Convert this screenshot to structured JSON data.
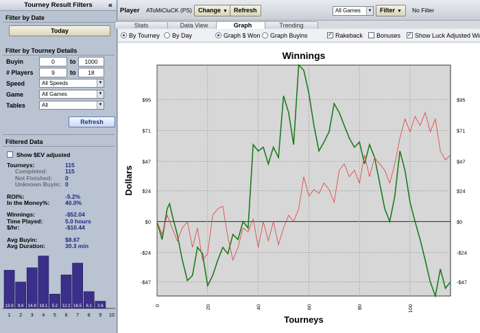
{
  "left_panel": {
    "title": "Tourney Result Filters",
    "collapse_glyph": "«",
    "date_section": {
      "title": "Filter by Date",
      "today_label": "Today"
    },
    "details_section": {
      "title": "Filter by Tourney Details",
      "buyin_label": "Buyin",
      "buyin_min": "0",
      "buyin_to": "to",
      "buyin_max": "1000",
      "players_label": "# Players",
      "players_min": "9",
      "players_to": "to",
      "players_max": "18",
      "speed_label": "Speed",
      "speed_value": "All Speeds",
      "game_label": "Game",
      "game_value": "All Games",
      "tables_label": "Tables",
      "tables_value": "All",
      "refresh_label": "Refresh"
    },
    "filtered": {
      "title": "Filtered Data",
      "show_ev_label": "Show $EV adjusted",
      "show_ev_checked": false,
      "stats": [
        {
          "label": "Tourneys:",
          "value": "115",
          "kind": "main"
        },
        {
          "label": "Completed:",
          "value": "115",
          "kind": "sub"
        },
        {
          "label": "Not Finished:",
          "value": "0",
          "kind": "sub"
        },
        {
          "label": "Unknown Buyin:",
          "value": "0",
          "kind": "sub"
        },
        {
          "label": "ROI%:",
          "value": "-5.2%",
          "kind": "main"
        },
        {
          "label": "In the Money%:",
          "value": "40.0%",
          "kind": "main"
        },
        {
          "label": "Winnings:",
          "value": "-$52.04",
          "kind": "main"
        },
        {
          "label": "Time Played:",
          "value": "5.0 hours",
          "kind": "main"
        },
        {
          "label": "$/hr:",
          "value": "-$10.44",
          "kind": "main"
        },
        {
          "label": "Avg Buyin:",
          "value": "$8.67",
          "kind": "main"
        },
        {
          "label": "Avg Duration:",
          "value": "30.3 min",
          "kind": "main"
        }
      ]
    },
    "histogram": {
      "bars": [
        13.9,
        9.6,
        14.8,
        19.1,
        5.2,
        12.2,
        16.5,
        6.1,
        2.6
      ],
      "bar_labels": [
        "13.9",
        "9.6",
        "14.8",
        "19.1",
        "5.2",
        "12.2",
        "16.5",
        "6.1",
        "2.6"
      ],
      "axis_labels": [
        "1",
        "2",
        "3",
        "4",
        "5",
        "6",
        "7",
        "8",
        "9",
        "10"
      ],
      "bar_color": "#3b2f8a"
    }
  },
  "toolbar": {
    "player_label": "Player",
    "player_name": "AToMiCluCK (PS)",
    "change_label": "Change",
    "refresh_label": "Refresh",
    "games_value": "All Games",
    "filter_label": "Filter",
    "filter_status": "No Filter"
  },
  "tabs": [
    {
      "label": "Stats",
      "active": false
    },
    {
      "label": "Data View",
      "active": false
    },
    {
      "label": "Graph",
      "active": true
    },
    {
      "label": "Trending",
      "active": false
    }
  ],
  "options": {
    "by_tourney": "By Tourney",
    "by_day": "By Day",
    "graph_won": "Graph $ Won",
    "graph_buyins": "Graph Buyins",
    "rakeback": "Rakeback",
    "bonuses": "Bonuses",
    "show_luck": "Show Luck Adjusted Winnings",
    "by_tourney_selected": true,
    "graph_won_selected": true,
    "rakeback_checked": true,
    "bonuses_checked": false,
    "show_luck_checked": true
  },
  "chart_data": {
    "type": "line",
    "title": "Winnings",
    "xlabel": "Tourneys",
    "ylabel": "Dollars",
    "xlim": [
      0,
      116
    ],
    "ylim": [
      -58,
      122
    ],
    "x_ticks": [
      0,
      20,
      40,
      60,
      80,
      100
    ],
    "y_ticks": [
      -47,
      -24,
      0,
      24,
      47,
      71,
      95
    ],
    "y_tick_labels": [
      "-$47",
      "-$24",
      "$0",
      "$24",
      "$47",
      "$71",
      "$95"
    ],
    "grid": true,
    "series": [
      {
        "color": "#1a7a1a",
        "x": [
          0,
          2,
          4,
          5,
          6,
          8,
          10,
          12,
          14,
          16,
          18,
          20,
          22,
          24,
          26,
          28,
          30,
          32,
          34,
          36,
          38,
          40,
          42,
          44,
          46,
          48,
          50,
          52,
          54,
          56,
          58,
          60,
          62,
          64,
          66,
          68,
          70,
          72,
          74,
          76,
          78,
          80,
          82,
          84,
          86,
          88,
          90,
          92,
          94,
          96,
          98,
          100,
          102,
          104,
          106,
          108,
          110,
          112,
          114,
          116
        ],
        "y": [
          0,
          -14,
          10,
          14,
          5,
          -10,
          -30,
          -46,
          -42,
          -20,
          -25,
          -50,
          -42,
          -30,
          -20,
          -25,
          -10,
          -14,
          0,
          -5,
          60,
          55,
          58,
          45,
          58,
          50,
          98,
          85,
          60,
          122,
          118,
          100,
          75,
          55,
          62,
          70,
          92,
          85,
          75,
          65,
          58,
          62,
          45,
          60,
          50,
          30,
          10,
          0,
          20,
          55,
          40,
          15,
          0,
          -14,
          -30,
          -47,
          -58,
          -37,
          -52,
          -47
        ]
      },
      {
        "color": "#e04a4a",
        "x": [
          0,
          2,
          4,
          6,
          8,
          10,
          12,
          14,
          16,
          18,
          20,
          22,
          24,
          26,
          28,
          30,
          32,
          34,
          36,
          38,
          40,
          42,
          44,
          46,
          48,
          50,
          52,
          54,
          56,
          58,
          60,
          62,
          64,
          66,
          68,
          70,
          72,
          74,
          76,
          78,
          80,
          82,
          84,
          86,
          88,
          90,
          92,
          94,
          96,
          98,
          100,
          102,
          104,
          106,
          108,
          110,
          112,
          114,
          116
        ],
        "y": [
          0,
          -10,
          5,
          -5,
          -15,
          -5,
          0,
          -20,
          -5,
          -30,
          -25,
          5,
          10,
          12,
          -12,
          -30,
          -20,
          -5,
          -8,
          2,
          -20,
          0,
          -15,
          0,
          -18,
          -5,
          5,
          0,
          10,
          35,
          20,
          25,
          22,
          30,
          25,
          15,
          40,
          45,
          35,
          40,
          30,
          52,
          35,
          50,
          45,
          40,
          30,
          45,
          65,
          80,
          70,
          82,
          75,
          85,
          70,
          80,
          55,
          48,
          52
        ]
      }
    ]
  }
}
